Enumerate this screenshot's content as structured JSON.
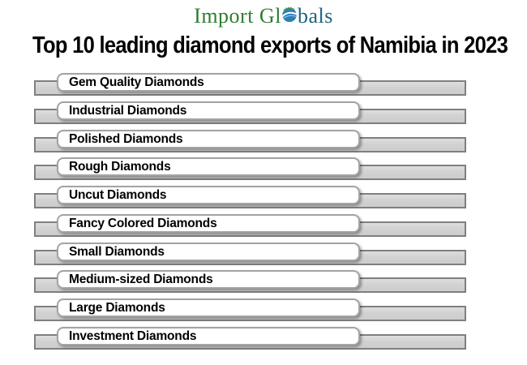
{
  "logo": {
    "part1": "Import Gl",
    "part2": "bals",
    "color_green": "#2e7d2e",
    "color_blue": "#1d6480",
    "globe_blue": "#2d7fb8",
    "globe_accent_green": "#3a9a3a"
  },
  "title": "Top 10 leading diamond exports of Namibia in 2023",
  "items": [
    "Gem Quality Diamonds",
    "Industrial Diamonds",
    "Polished Diamonds",
    "Rough Diamonds",
    "Uncut Diamonds",
    "Fancy Colored Diamonds",
    "Small Diamonds",
    "Medium-sized Diamonds",
    "Large Diamonds",
    "Investment Diamonds"
  ],
  "chart_data": {
    "type": "bar",
    "title": "Top 10 leading diamond exports of Namibia in 2023",
    "categories": [
      "Gem Quality Diamonds",
      "Industrial Diamonds",
      "Polished Diamonds",
      "Rough Diamonds",
      "Uncut Diamonds",
      "Fancy Colored Diamonds",
      "Small Diamonds",
      "Medium-sized Diamonds",
      "Large Diamonds",
      "Investment Diamonds"
    ],
    "values_shown": false,
    "note": "Ranked list infographic; all bars are equal length, no axis or numeric values displayed",
    "orientation": "horizontal",
    "bar_fill": "#d2d2d2",
    "bar_border": "#7f7f7f",
    "xlabel": "",
    "ylabel": ""
  },
  "colors": {
    "background": "#ffffff",
    "title_text": "#000000",
    "label_text": "#000000",
    "label_box_bg": "#ffffff",
    "label_box_border": "#a3a3a3"
  }
}
